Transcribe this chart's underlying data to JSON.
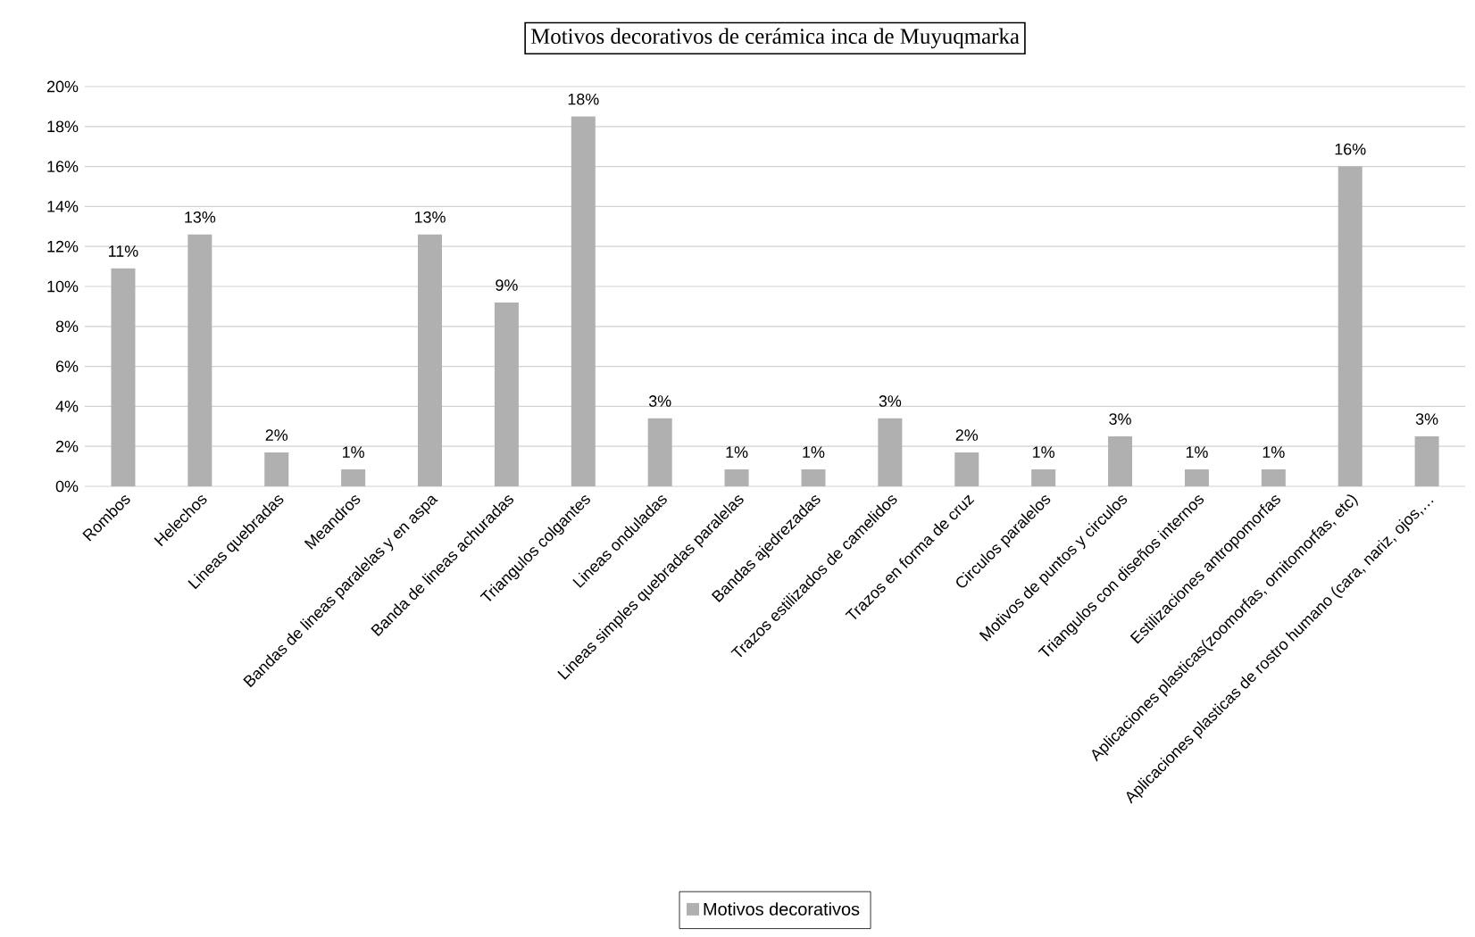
{
  "chart_data": {
    "type": "bar",
    "title": "Motivos decorativos de cerámica inca de Muyuqmarka",
    "categories": [
      "Rombos",
      "Helechos",
      "Lineas quebradas",
      "Meandros",
      "Bandas de lineas paralelas y en aspa",
      "Banda de lineas achuradas",
      "Triangulos colgantes",
      "Lineas onduladas",
      "Lineas simples quebradas paralelas",
      "Bandas ajedrezadas",
      "Trazos estilizados de camelidos",
      "Trazos en forma de cruz",
      "Circulos paralelos",
      "Motivos de puntos y circulos",
      "Triangulos con diseños internos",
      "Estilizaciones antropomorfas",
      "Aplicaciones plasticas(zoomorfas, ornitomorfas, etc)",
      "Aplicaciones plasticas de rostro humano (cara, nariz, ojos,…"
    ],
    "series": [
      {
        "name": "Motivos decorativos",
        "color": "#b0b0b0",
        "values": [
          10.9,
          12.6,
          1.7,
          0.85,
          12.6,
          9.2,
          18.5,
          3.4,
          0.85,
          0.85,
          3.4,
          1.7,
          0.85,
          2.5,
          0.85,
          0.85,
          16.0,
          2.5
        ],
        "value_labels": [
          "11%",
          "13%",
          "2%",
          "1%",
          "13%",
          "9%",
          "18%",
          "3%",
          "1%",
          "1%",
          "3%",
          "2%",
          "1%",
          "3%",
          "1%",
          "1%",
          "16%",
          "3%"
        ]
      }
    ],
    "ylim": [
      0,
      20
    ],
    "yticks": [
      {
        "value": 0,
        "label": "0%"
      },
      {
        "value": 2,
        "label": "2%"
      },
      {
        "value": 4,
        "label": "4%"
      },
      {
        "value": 6,
        "label": "6%"
      },
      {
        "value": 8,
        "label": "8%"
      },
      {
        "value": 10,
        "label": "10%"
      },
      {
        "value": 12,
        "label": "12%"
      },
      {
        "value": 14,
        "label": "14%"
      },
      {
        "value": 16,
        "label": "16%"
      },
      {
        "value": 18,
        "label": "18%"
      },
      {
        "value": 20,
        "label": "20%"
      }
    ],
    "grid": "y",
    "legend": "bottom"
  }
}
